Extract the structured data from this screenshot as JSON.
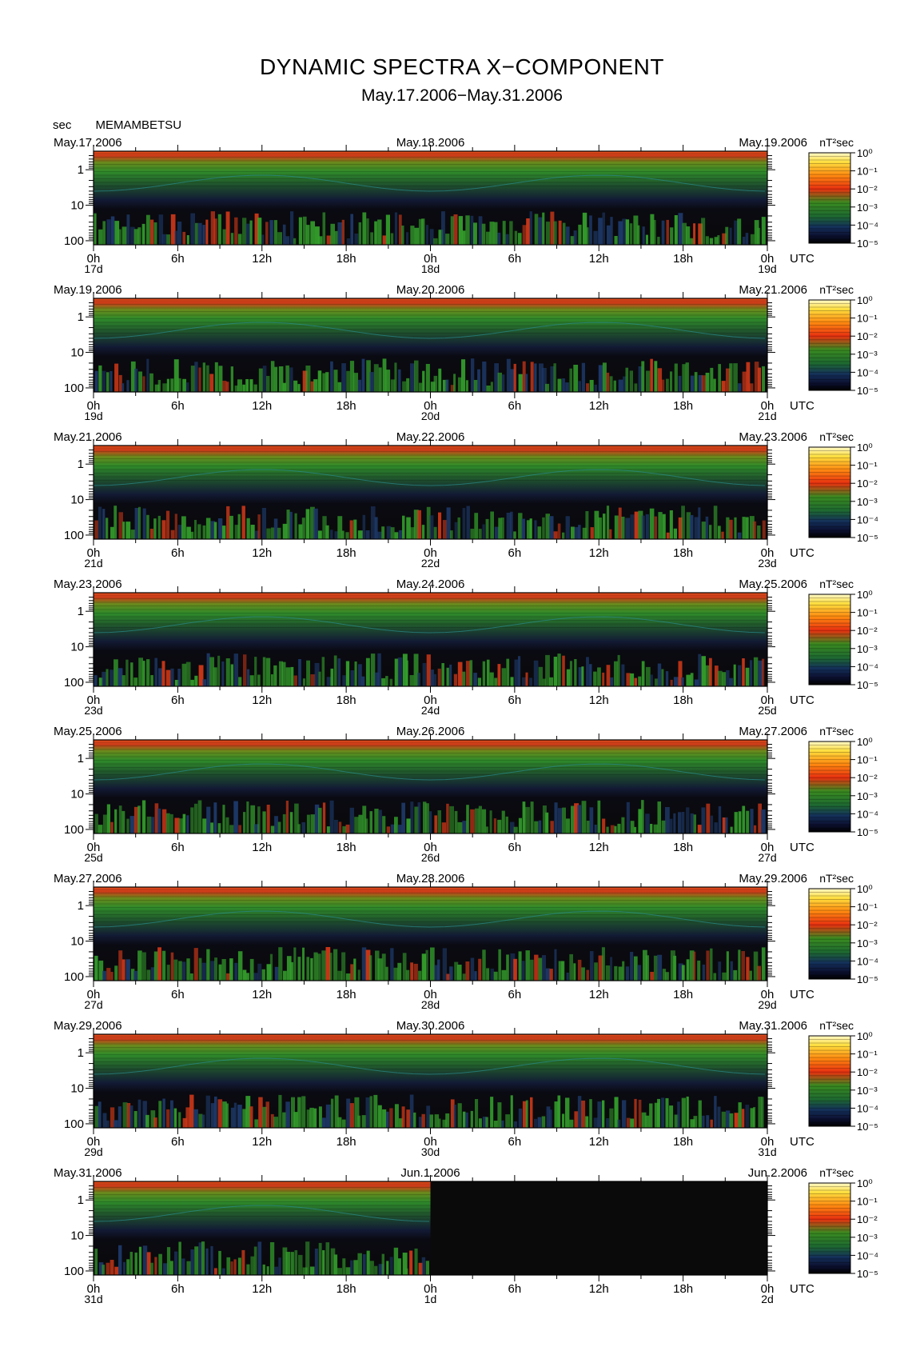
{
  "figure": {
    "title": "DYNAMIC SPECTRA X−COMPONENT",
    "subtitle": "May.17.2006−May.31.2006",
    "y_unit": "sec",
    "station": "MEMAMBETSU",
    "time_zone": "UTC",
    "colorbar_unit": "nT²sec",
    "colorbar_ticks": [
      "10⁰",
      "10⁻¹",
      "10⁻²",
      "10⁻³",
      "10⁻⁴",
      "10⁻⁵"
    ],
    "colors": {
      "background": "#0a0a0a",
      "band_top": "#c83a18",
      "band_green": "#2f8a2a",
      "band_dark": "#101a3a",
      "activity_red": "#d03818",
      "activity_green": "#34a02c"
    }
  },
  "chart_data": [
    {
      "type": "heatmap",
      "date_left": "May.17.2006",
      "date_mid": "May.18.2006",
      "date_right": "May.19.2006",
      "x_ticks": [
        "0h",
        "6h",
        "12h",
        "18h",
        "0h",
        "6h",
        "12h",
        "18h",
        "0h"
      ],
      "day_labels": [
        "17d",
        "18d",
        "19d"
      ],
      "y_ticks": [
        "1",
        "10",
        "100"
      ],
      "data_until_fraction": 1.0
    },
    {
      "type": "heatmap",
      "date_left": "May.19.2006",
      "date_mid": "May.20.2006",
      "date_right": "May.21.2006",
      "x_ticks": [
        "0h",
        "6h",
        "12h",
        "18h",
        "0h",
        "6h",
        "12h",
        "18h",
        "0h"
      ],
      "day_labels": [
        "19d",
        "20d",
        "21d"
      ],
      "y_ticks": [
        "1",
        "10",
        "100"
      ],
      "data_until_fraction": 1.0
    },
    {
      "type": "heatmap",
      "date_left": "May.21.2006",
      "date_mid": "May.22.2006",
      "date_right": "May.23.2006",
      "x_ticks": [
        "0h",
        "6h",
        "12h",
        "18h",
        "0h",
        "6h",
        "12h",
        "18h",
        "0h"
      ],
      "day_labels": [
        "21d",
        "22d",
        "23d"
      ],
      "y_ticks": [
        "1",
        "10",
        "100"
      ],
      "data_until_fraction": 1.0
    },
    {
      "type": "heatmap",
      "date_left": "May.23.2006",
      "date_mid": "May.24.2006",
      "date_right": "May.25.2006",
      "x_ticks": [
        "0h",
        "6h",
        "12h",
        "18h",
        "0h",
        "6h",
        "12h",
        "18h",
        "0h"
      ],
      "day_labels": [
        "23d",
        "24d",
        "25d"
      ],
      "y_ticks": [
        "1",
        "10",
        "100"
      ],
      "data_until_fraction": 1.0
    },
    {
      "type": "heatmap",
      "date_left": "May.25.2006",
      "date_mid": "May.26.2006",
      "date_right": "May.27.2006",
      "x_ticks": [
        "0h",
        "6h",
        "12h",
        "18h",
        "0h",
        "6h",
        "12h",
        "18h",
        "0h"
      ],
      "day_labels": [
        "25d",
        "26d",
        "27d"
      ],
      "y_ticks": [
        "1",
        "10",
        "100"
      ],
      "data_until_fraction": 1.0
    },
    {
      "type": "heatmap",
      "date_left": "May.27.2006",
      "date_mid": "May.28.2006",
      "date_right": "May.29.2006",
      "x_ticks": [
        "0h",
        "6h",
        "12h",
        "18h",
        "0h",
        "6h",
        "12h",
        "18h",
        "0h"
      ],
      "day_labels": [
        "27d",
        "28d",
        "29d"
      ],
      "y_ticks": [
        "1",
        "10",
        "100"
      ],
      "data_until_fraction": 1.0
    },
    {
      "type": "heatmap",
      "date_left": "May.29.2006",
      "date_mid": "May.30.2006",
      "date_right": "May.31.2006",
      "x_ticks": [
        "0h",
        "6h",
        "12h",
        "18h",
        "0h",
        "6h",
        "12h",
        "18h",
        "0h"
      ],
      "day_labels": [
        "29d",
        "30d",
        "31d"
      ],
      "y_ticks": [
        "1",
        "10",
        "100"
      ],
      "data_until_fraction": 1.0
    },
    {
      "type": "heatmap",
      "date_left": "May.31.2006",
      "date_mid": "Jun.1.2006",
      "date_right": "Jun.2.2006",
      "x_ticks": [
        "0h",
        "6h",
        "12h",
        "18h",
        "0h",
        "6h",
        "12h",
        "18h",
        "0h"
      ],
      "day_labels": [
        "31d",
        "1d",
        "2d"
      ],
      "y_ticks": [
        "1",
        "10",
        "100"
      ],
      "data_until_fraction": 0.5
    }
  ]
}
